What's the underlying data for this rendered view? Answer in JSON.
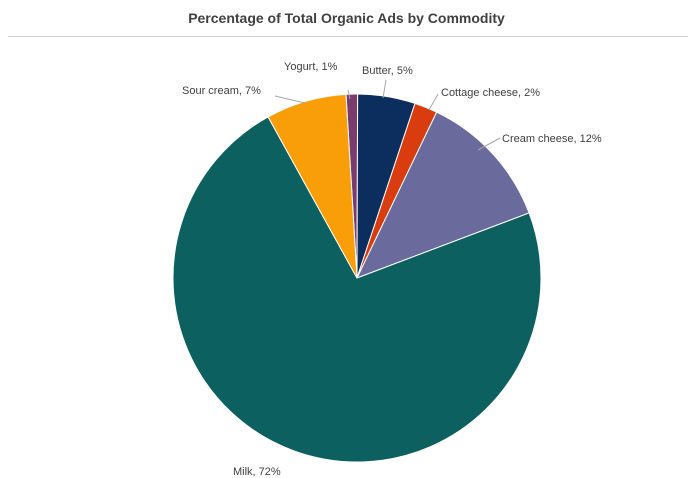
{
  "chart_data": {
    "type": "pie",
    "title": "Percentage of Total Organic Ads by Commodity",
    "slices": [
      {
        "label": "Yogurt",
        "value": 1,
        "display": "Yogurt, 1%",
        "color": "#7a3b6e"
      },
      {
        "label": "Butter",
        "value": 5,
        "display": "Butter, 5%",
        "color": "#0b2e5e"
      },
      {
        "label": "Cottage cheese",
        "value": 2,
        "display": "Cottage cheese, 2%",
        "color": "#d93d0f"
      },
      {
        "label": "Cream cheese",
        "value": 12,
        "display": "Cream cheese, 12%",
        "color": "#6a6a9c"
      },
      {
        "label": "Milk",
        "value": 72,
        "display": "Milk, 72%",
        "color": "#0d6060"
      },
      {
        "label": "Sour cream",
        "value": 7,
        "display": "Sour cream, 7%",
        "color": "#f99d09"
      }
    ],
    "legend": "none",
    "data_labels": "outside"
  }
}
